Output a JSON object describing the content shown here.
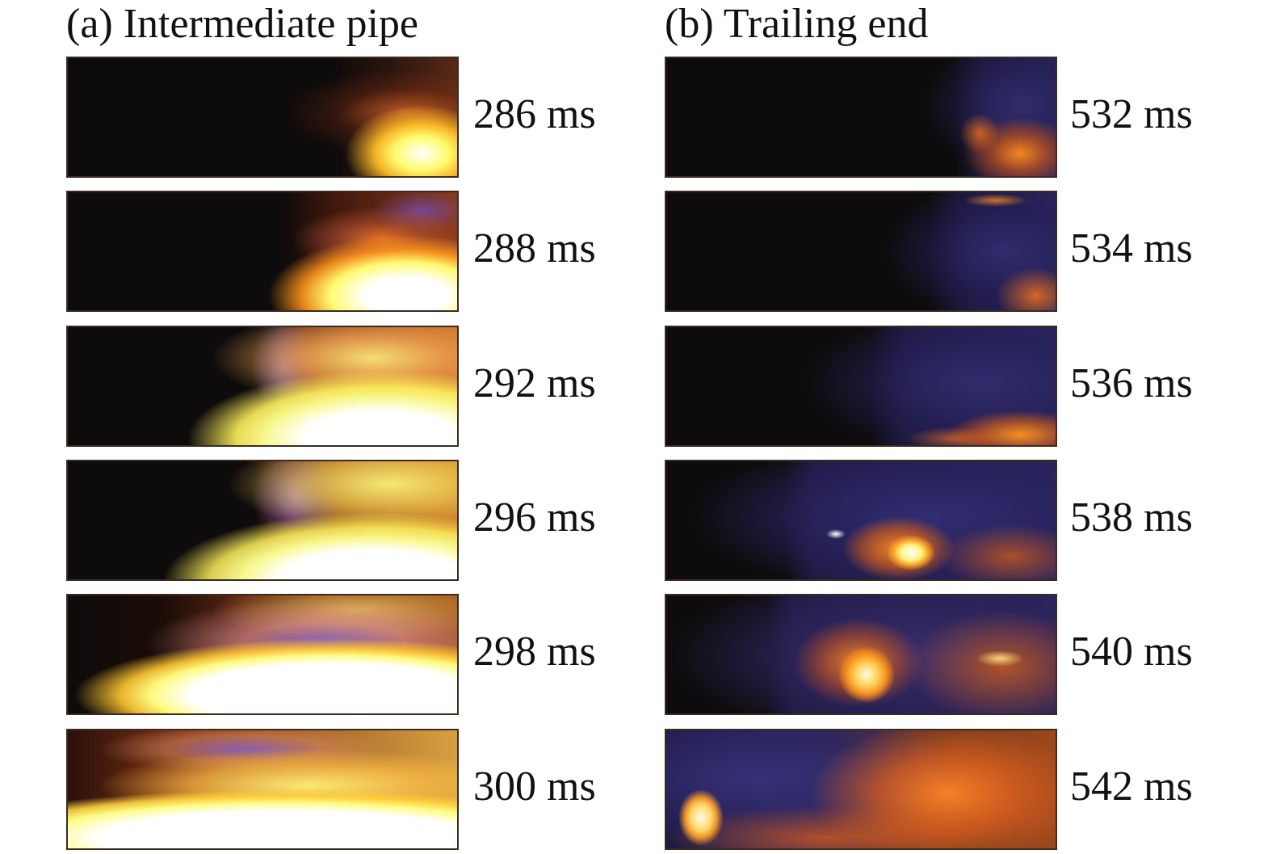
{
  "panel_a": {
    "title": "(a) Intermediate pipe",
    "frames": [
      {
        "time": "286 ms"
      },
      {
        "time": "288 ms"
      },
      {
        "time": "292 ms"
      },
      {
        "time": "296 ms"
      },
      {
        "time": "298 ms"
      },
      {
        "time": "300 ms"
      }
    ]
  },
  "panel_b": {
    "title": "(b) Trailing end",
    "frames": [
      {
        "time": "532 ms"
      },
      {
        "time": "534 ms"
      },
      {
        "time": "536 ms"
      },
      {
        "time": "538 ms"
      },
      {
        "time": "540 ms"
      },
      {
        "time": "542 ms"
      }
    ]
  }
}
